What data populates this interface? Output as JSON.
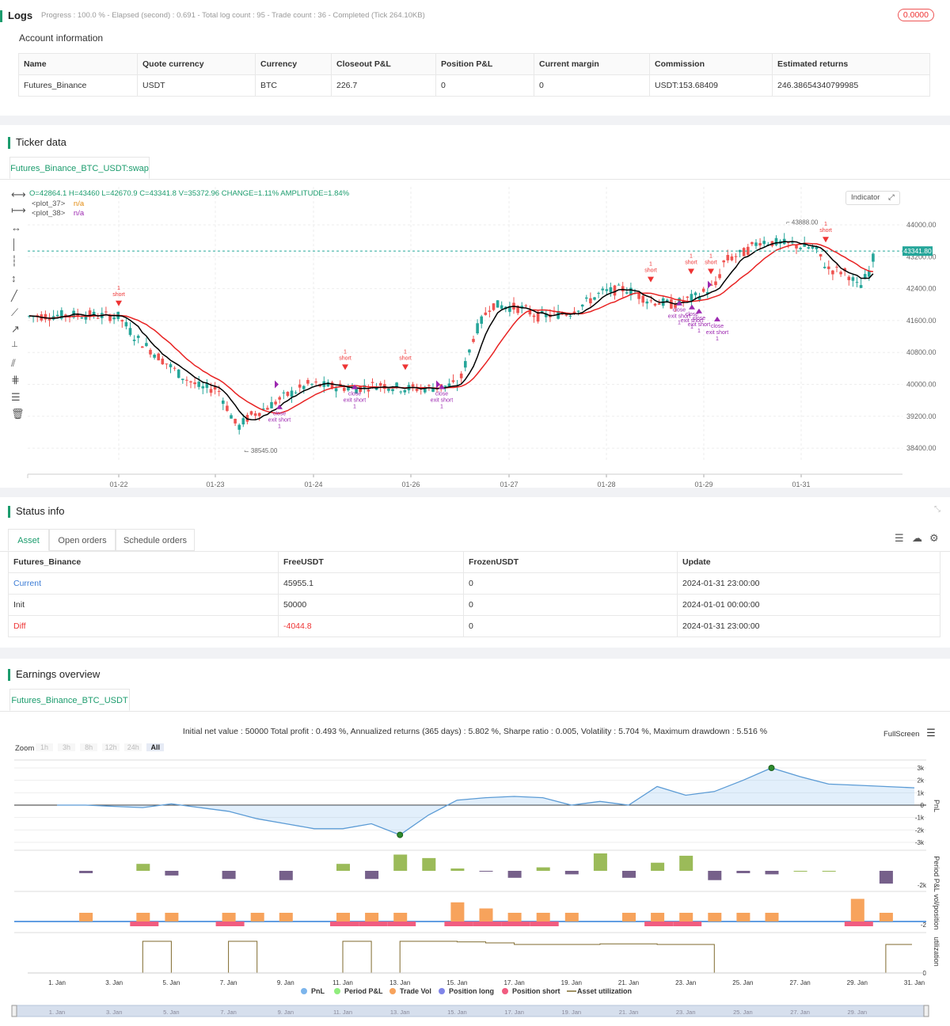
{
  "logs": {
    "title": "Logs",
    "progress": "Progress : 100.0 % - Elapsed (second) : 0.691 - Total log count : 95 - Trade count : 36 - Completed (Tick 264.10KB)",
    "badge": "0.0000",
    "account_title": "Account information",
    "headers": [
      "Name",
      "Quote currency",
      "Currency",
      "Closeout P&L",
      "Position P&L",
      "Current margin",
      "Commission",
      "Estimated returns"
    ],
    "row": [
      "Futures_Binance",
      "USDT",
      "BTC",
      "226.7",
      "0",
      "0",
      "USDT:153.68409",
      "246.38654340799985"
    ]
  },
  "ticker": {
    "title": "Ticker data",
    "tab": "Futures_Binance_BTC_USDT:swap",
    "ohlc": "O=42864.1 H=43460 L=42670.9 C=43341.8 V=35372.96 CHANGE=1.11% AMPLITUDE=1.84%",
    "legend1_name": "<plot_37>",
    "legend1_val": "n/a",
    "legend2_name": "<plot_38>",
    "legend2_val": "n/a",
    "indicator_btn": "Indicator",
    "price_label": "43341.80",
    "high_label": "43888.00",
    "low_label": "38545.00",
    "y_ticks": [
      "44000.00",
      "43200.00",
      "42400.00",
      "41600.00",
      "40800.00",
      "40000.00",
      "39200.00",
      "38400.00"
    ],
    "x_ticks": [
      "01-22",
      "01-23",
      "01-24",
      "01-26",
      "01-27",
      "01-28",
      "01-29",
      "01-31"
    ],
    "colors": {
      "up": "#26a69a",
      "down": "#ef5350",
      "ma_fast": "#000000",
      "ma_slow": "#e82323",
      "signal": "#9c27b0"
    }
  },
  "status": {
    "title": "Status info",
    "tabs": [
      "Asset",
      "Open orders",
      "Schedule orders"
    ],
    "headers": [
      "Futures_Binance",
      "FreeUSDT",
      "FrozenUSDT",
      "Update"
    ],
    "rows": [
      [
        "Current",
        "45955.1",
        "0",
        "2024-01-31 23:00:00"
      ],
      [
        "Init",
        "50000",
        "0",
        "2024-01-01 00:00:00"
      ],
      [
        "Diff",
        "-4044.8",
        "0",
        "2024-01-31 23:00:00"
      ]
    ]
  },
  "earnings": {
    "title": "Earnings overview",
    "tab": "Futures_Binance_BTC_USDT",
    "summary": "Initial net value : 50000 Total profit : 0.493 %, Annualized returns (365 days) : 5.802 %, Sharpe ratio : 0.005, Volatility : 5.704 %, Maximum drawdown : 5.516 %",
    "fullscreen": "FullScreen",
    "zoom_label": "Zoom",
    "zoom_opts": [
      "1h",
      "3h",
      "8h",
      "12h",
      "24h",
      "All"
    ],
    "pnl_ticks": [
      "3k",
      "2k",
      "1k",
      "0",
      "-1k",
      "-2k",
      "-3k"
    ],
    "axis_titles": [
      "PnL",
      "Period P&L",
      "vol/position",
      "utilization"
    ],
    "ppl_tick": "-2k",
    "vol_tick": "-2",
    "util_tick": "0",
    "x_ticks": [
      "1. Jan",
      "3. Jan",
      "5. Jan",
      "7. Jan",
      "9. Jan",
      "11. Jan",
      "13. Jan",
      "15. Jan",
      "17. Jan",
      "19. Jan",
      "21. Jan",
      "23. Jan",
      "25. Jan",
      "27. Jan",
      "29. Jan",
      "31. Jan"
    ],
    "nav_ticks": [
      "1. Jan",
      "3. Jan",
      "5. Jan",
      "7. Jan",
      "9. Jan",
      "11. Jan",
      "13. Jan",
      "15. Jan",
      "17. Jan",
      "19. Jan",
      "21. Jan",
      "23. Jan",
      "25. Jan",
      "27. Jan",
      "29. Jan"
    ],
    "legend": [
      {
        "label": "PnL",
        "color": "#7cb5ec"
      },
      {
        "label": "Period P&L",
        "color": "#90ed7d"
      },
      {
        "label": "Trade Vol",
        "color": "#f7a35c"
      },
      {
        "label": "Position long",
        "color": "#8085e9"
      },
      {
        "label": "Position short",
        "color": "#f15c80"
      },
      {
        "label": "Asset utilization",
        "color": "#7f6a2e"
      }
    ]
  },
  "chart_data": [
    {
      "type": "line",
      "title": "",
      "x": [
        "1. Jan",
        "2. Jan",
        "3. Jan",
        "4. Jan",
        "5. Jan",
        "6. Jan",
        "7. Jan",
        "8. Jan",
        "9. Jan",
        "10. Jan",
        "11. Jan",
        "12. Jan",
        "13. Jan",
        "14. Jan",
        "15. Jan",
        "16. Jan",
        "17. Jan",
        "18. Jan",
        "19. Jan",
        "20. Jan",
        "21. Jan",
        "22. Jan",
        "23. Jan",
        "24. Jan",
        "25. Jan",
        "26. Jan",
        "27. Jan",
        "28. Jan",
        "29. Jan",
        "30. Jan",
        "31. Jan"
      ],
      "series": [
        {
          "name": "PnL",
          "values": [
            0,
            0,
            -100,
            -200,
            100,
            -200,
            -500,
            -1100,
            -1500,
            -1900,
            -1900,
            -1500,
            -2400,
            -800,
            400,
            600,
            700,
            600,
            0,
            300,
            0,
            1500,
            800,
            1100,
            2000,
            3000,
            2300,
            1700,
            1600,
            1500,
            1400
          ]
        }
      ],
      "ylim": [
        -3000,
        3000
      ]
    },
    {
      "type": "bar",
      "x": [
        "2. Jan",
        "4. Jan",
        "5. Jan",
        "7. Jan",
        "9. Jan",
        "11. Jan",
        "12. Jan",
        "13. Jan",
        "14. Jan",
        "15. Jan",
        "16. Jan",
        "17. Jan",
        "18. Jan",
        "19. Jan",
        "20. Jan",
        "21. Jan",
        "22. Jan",
        "23. Jan",
        "24. Jan",
        "25. Jan",
        "26. Jan",
        "27. Jan",
        "28. Jan",
        "30. Jan"
      ],
      "series": [
        {
          "name": "Period P&L",
          "values": [
            -200,
            600,
            -400,
            -700,
            -800,
            600,
            -700,
            1400,
            1100,
            200,
            -50,
            -600,
            300,
            -300,
            1500,
            -600,
            700,
            1300,
            -800,
            -200,
            -300,
            0,
            0,
            -1100
          ]
        }
      ]
    },
    {
      "type": "bar",
      "x": [
        "2. Jan",
        "4. Jan",
        "5. Jan",
        "7. Jan",
        "8. Jan",
        "9. Jan",
        "11. Jan",
        "12. Jan",
        "13. Jan",
        "15. Jan",
        "16. Jan",
        "17. Jan",
        "18. Jan",
        "19. Jan",
        "21. Jan",
        "22. Jan",
        "23. Jan",
        "24. Jan",
        "25. Jan",
        "26. Jan",
        "29. Jan",
        "30. Jan"
      ],
      "series": [
        {
          "name": "Trade Vol",
          "values": [
            1,
            1,
            1,
            1,
            1,
            1,
            1,
            1,
            1,
            2.2,
            1.5,
            1,
            1,
            1,
            1,
            1,
            1,
            1,
            1,
            1,
            2.6,
            1
          ]
        },
        {
          "name": "Position short",
          "values": [
            0,
            -1,
            0,
            -1,
            0,
            0,
            -1,
            -1,
            -1,
            -1,
            -1,
            -1,
            -1,
            0,
            0,
            -1,
            -1,
            0,
            0,
            0,
            -1,
            0
          ]
        }
      ]
    },
    {
      "type": "line",
      "x": [
        "1. Jan",
        "4. Jan",
        "5. Jan",
        "6. Jan",
        "7. Jan",
        "8. Jan",
        "10. Jan",
        "11. Jan",
        "12. Jan",
        "13. Jan",
        "15. Jan",
        "16. Jan",
        "17. Jan",
        "20. Jan",
        "22. Jan",
        "24. Jan",
        "29. Jan",
        "30. Jan"
      ],
      "series": [
        {
          "name": "Asset utilization",
          "values": [
            0,
            1,
            0,
            0,
            1,
            0,
            0,
            1,
            0,
            1,
            0.98,
            0.95,
            0.9,
            0.92,
            0.9,
            0,
            0,
            0.9
          ]
        }
      ]
    }
  ]
}
